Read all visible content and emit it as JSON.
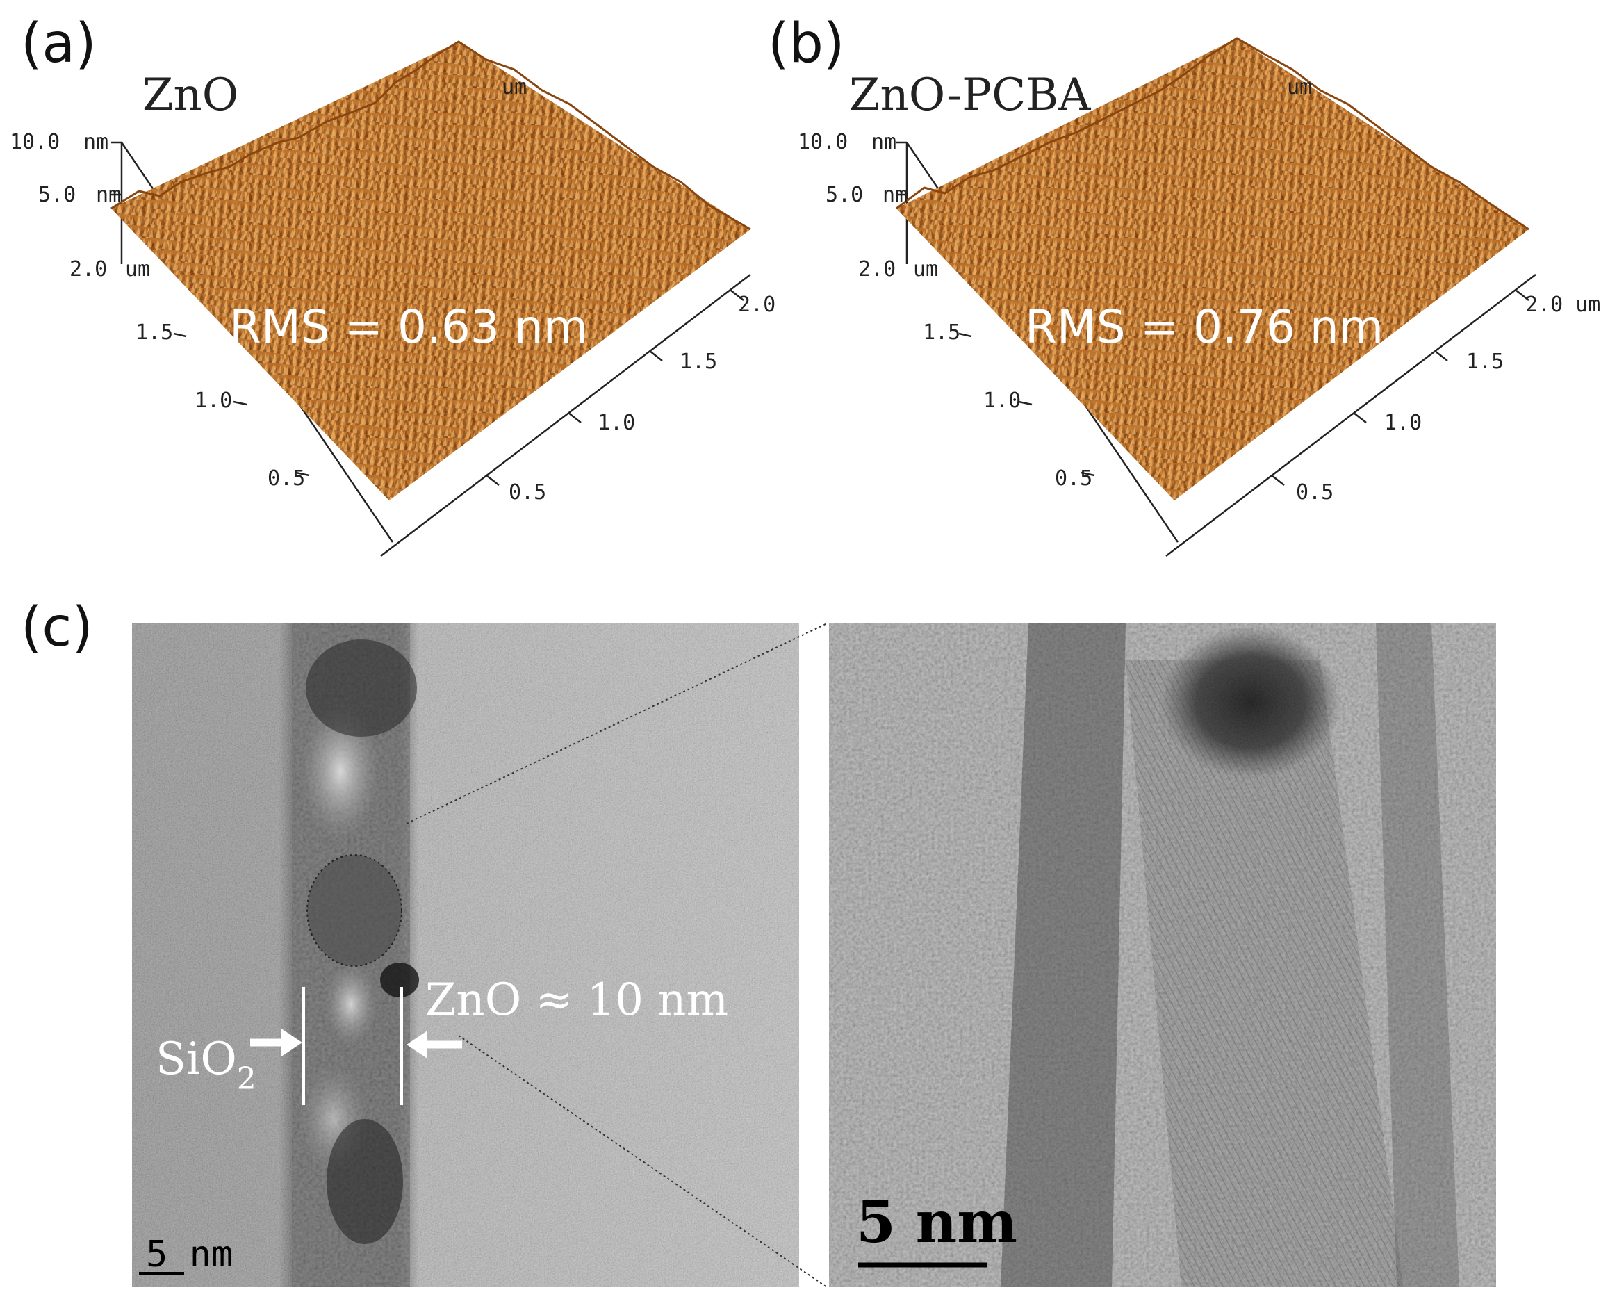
{
  "panels": {
    "a": {
      "label": "(a)",
      "title": "ZnO",
      "rms": "RMS = 0.63 nm",
      "z_ticks": [
        "10.0",
        "5.0"
      ],
      "z_unit": "nm",
      "left_axis_top": "2.0",
      "left_axis_unit": "um",
      "left_ticks": [
        "1.5",
        "1.0",
        "0.5"
      ],
      "right_ticks": [
        "2.0",
        "1.5",
        "1.0",
        "0.5"
      ],
      "top_unit": "um"
    },
    "b": {
      "label": "(b)",
      "title": "ZnO-PCBA",
      "rms": "RMS = 0.76 nm",
      "z_ticks": [
        "10.0",
        "5.0"
      ],
      "z_unit": "nm",
      "left_axis_top": "2.0",
      "left_axis_unit": "um",
      "left_ticks": [
        "1.5",
        "1.0",
        "0.5"
      ],
      "right_ticks": [
        "2.0 um",
        "1.5",
        "1.0",
        "0.5"
      ],
      "top_unit": "um"
    },
    "c": {
      "label": "(c)",
      "sio2_label": "SiO",
      "sio2_subscript": "2",
      "zno_label": "ZnO ≈ 10 nm",
      "scalebar_left": "5 nm",
      "scalebar_right": "5 nm"
    }
  },
  "colors": {
    "afm_surface": "#b5651d",
    "afm_highlight": "#e09a4a",
    "afm_shadow": "#6b3208"
  }
}
